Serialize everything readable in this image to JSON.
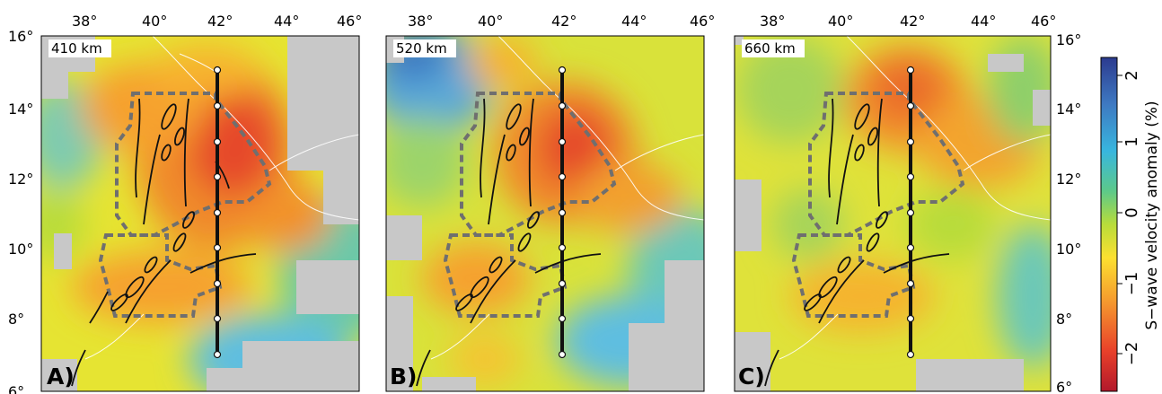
{
  "panels": [
    {
      "id": "A",
      "label": "A)",
      "depth": "410 km"
    },
    {
      "id": "B",
      "label": "B)",
      "depth": "520 km"
    },
    {
      "id": "C",
      "label": "C)",
      "depth": "660 km"
    }
  ],
  "lon_ticks": [
    "38°",
    "40°",
    "42°",
    "44°",
    "46°"
  ],
  "lat_ticks": [
    "16°",
    "14°",
    "12°",
    "10°",
    "8°",
    "6°"
  ],
  "lon_values": [
    38,
    40,
    42,
    44,
    46
  ],
  "lat_values": [
    16,
    14,
    12,
    10,
    8,
    6
  ],
  "colorbar": {
    "title": "S−wave velocity anomaly (%)",
    "ticks": [
      "2",
      "1",
      "0",
      "−1",
      "−2"
    ],
    "tick_values": [
      2,
      1,
      0,
      -1,
      -2
    ],
    "range": [
      -2.5,
      2.5
    ],
    "colors": [
      "#b2182b",
      "#e8402a",
      "#f59a2e",
      "#fce030",
      "#b8dc3a",
      "#5cc98a",
      "#38b6de",
      "#3e79c2",
      "#2c3b8f"
    ]
  },
  "profile": {
    "lon": 42,
    "lat_start": 15,
    "lat_end": 7,
    "markers_lat": [
      15,
      14,
      13,
      12,
      11,
      10,
      9,
      8,
      7
    ]
  },
  "colors": {
    "no_data": "#c8c8c8",
    "region_outline": "#6f6f6f",
    "profile": "#111111"
  }
}
